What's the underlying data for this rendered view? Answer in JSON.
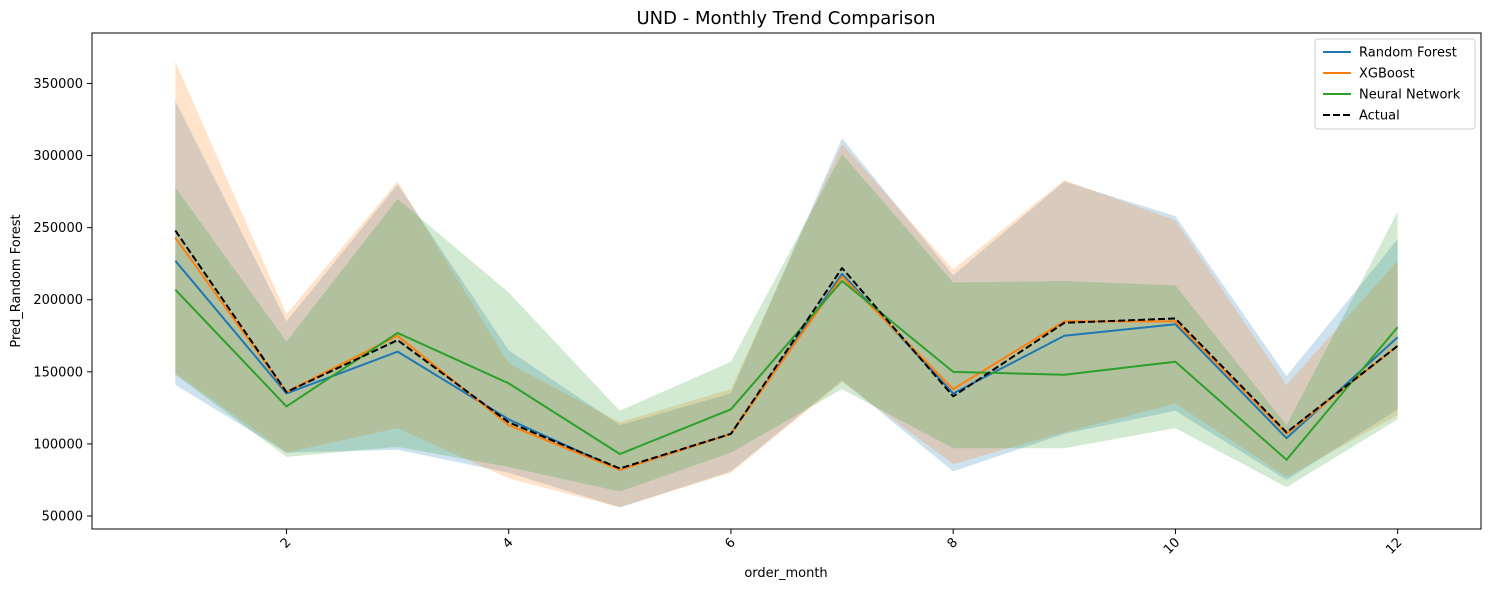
{
  "chart_data": {
    "type": "line",
    "title": "UND - Monthly Trend Comparison",
    "xlabel": "order_month",
    "ylabel": "Pred_Random Forest",
    "xlim": [
      0.25,
      12.75
    ],
    "ylim": [
      41000,
      385000
    ],
    "x_ticks": [
      2,
      4,
      6,
      8,
      10,
      12
    ],
    "x_tick_labels": [
      "2",
      "4",
      "6",
      "8",
      "10",
      "12"
    ],
    "y_ticks": [
      50000,
      100000,
      150000,
      200000,
      250000,
      300000,
      350000
    ],
    "y_tick_labels": [
      "50000",
      "100000",
      "150000",
      "200000",
      "250000",
      "300000",
      "350000"
    ],
    "grid": false,
    "legend_position": "top-right",
    "x": [
      1,
      2,
      3,
      4,
      5,
      6,
      7,
      8,
      9,
      10,
      11,
      12
    ],
    "series": [
      {
        "name": "Random Forest",
        "color": "#1f77b4",
        "style": "solid",
        "values": [
          227000,
          135000,
          164000,
          117000,
          82000,
          107000,
          218000,
          135000,
          175000,
          183000,
          104000,
          174000
        ],
        "band_upper": [
          338000,
          185000,
          280000,
          165000,
          113000,
          135000,
          312000,
          217000,
          282000,
          258000,
          147000,
          242000
        ],
        "band_lower": [
          141000,
          94000,
          96000,
          80000,
          56000,
          81000,
          144000,
          81000,
          107000,
          123000,
          75000,
          124000
        ]
      },
      {
        "name": "XGBoost",
        "color": "#ff7f0e",
        "style": "solid",
        "values": [
          243000,
          136000,
          175000,
          113000,
          82000,
          107000,
          216000,
          138000,
          185000,
          185000,
          107000,
          168000
        ],
        "band_upper": [
          365000,
          190000,
          282000,
          156000,
          115000,
          138000,
          308000,
          221000,
          283000,
          255000,
          141000,
          227000
        ],
        "band_lower": [
          149000,
          94000,
          111000,
          76000,
          56000,
          80000,
          143000,
          86000,
          108000,
          128000,
          77000,
          120000
        ]
      },
      {
        "name": "Neural Network",
        "color": "#2ca02c",
        "style": "solid",
        "values": [
          207000,
          126000,
          177000,
          142000,
          93000,
          124000,
          213000,
          150000,
          148000,
          157000,
          89000,
          181000
        ],
        "band_upper": [
          278000,
          171000,
          270000,
          205000,
          123000,
          157000,
          301000,
          212000,
          213000,
          210000,
          113000,
          261000
        ],
        "band_lower": [
          148000,
          91000,
          98000,
          84000,
          67000,
          94000,
          138000,
          97000,
          97000,
          111000,
          70000,
          117000
        ]
      },
      {
        "name": "Actual",
        "color": "#000000",
        "style": "dashed",
        "values": [
          248000,
          136000,
          172000,
          115000,
          83000,
          107000,
          222000,
          133000,
          184000,
          187000,
          108000,
          168000
        ]
      }
    ]
  }
}
